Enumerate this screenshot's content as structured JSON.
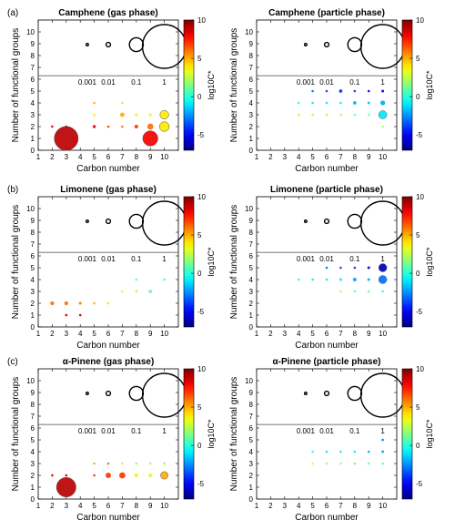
{
  "figure": {
    "colorbar": {
      "label": "log10C*",
      "ticks": [
        10,
        5,
        0,
        -5
      ],
      "range": [
        -7,
        10
      ]
    },
    "size_legend": {
      "values": [
        0.001,
        0.01,
        0.1,
        1
      ],
      "labels": [
        "0.001",
        "0.01",
        "0.1",
        "1"
      ],
      "x_positions": [
        4.5,
        6,
        8,
        10
      ]
    }
  },
  "chart_data": [
    {
      "type": "scatter",
      "panel_label": "(a)",
      "title": "Camphene (gas phase)",
      "xlabel": "Carbon number",
      "ylabel": "Number of functional groups",
      "xlim": [
        1,
        11
      ],
      "ylim": [
        0,
        11
      ],
      "xticks": [
        1,
        2,
        3,
        4,
        5,
        6,
        7,
        8,
        9,
        10
      ],
      "yticks": [
        0,
        1,
        2,
        3,
        4,
        5,
        6,
        7,
        8,
        9,
        10
      ],
      "points": [
        {
          "x": 2,
          "y": 2,
          "size": 0.003,
          "logC": 8
        },
        {
          "x": 3,
          "y": 2,
          "size": 0.001,
          "logC": 9
        },
        {
          "x": 3,
          "y": 1,
          "size": 0.3,
          "logC": 9
        },
        {
          "x": 5,
          "y": 4,
          "size": 0.001,
          "logC": 5
        },
        {
          "x": 5,
          "y": 3,
          "size": 0.001,
          "logC": 4
        },
        {
          "x": 5,
          "y": 2,
          "size": 0.005,
          "logC": 8
        },
        {
          "x": 6,
          "y": 2,
          "size": 0.002,
          "logC": 7
        },
        {
          "x": 7,
          "y": 4,
          "size": 0.001,
          "logC": 2
        },
        {
          "x": 7,
          "y": 3,
          "size": 0.01,
          "logC": 5
        },
        {
          "x": 7,
          "y": 2,
          "size": 0.002,
          "logC": 6
        },
        {
          "x": 8,
          "y": 3,
          "size": 0.005,
          "logC": 3
        },
        {
          "x": 8,
          "y": 2,
          "size": 0.007,
          "logC": 7
        },
        {
          "x": 9,
          "y": 3,
          "size": 0.005,
          "logC": 3
        },
        {
          "x": 9,
          "y": 2,
          "size": 0.02,
          "logC": 6
        },
        {
          "x": 9,
          "y": 1,
          "size": 0.12,
          "logC": 8
        },
        {
          "x": 10,
          "y": 3,
          "size": 0.04,
          "logC": 4
        },
        {
          "x": 10,
          "y": 2,
          "size": 0.05,
          "logC": 4
        }
      ]
    },
    {
      "type": "scatter",
      "panel_label": "",
      "title": "Camphene (particle phase)",
      "xlabel": "Carbon number",
      "ylabel": "Number of functional groups",
      "xlim": [
        1,
        11
      ],
      "ylim": [
        0,
        11
      ],
      "xticks": [
        1,
        2,
        3,
        4,
        5,
        6,
        7,
        8,
        9,
        10
      ],
      "yticks": [
        0,
        1,
        2,
        3,
        4,
        5,
        6,
        7,
        8,
        9,
        10
      ],
      "points": [
        {
          "x": 4,
          "y": 4,
          "size": 0.001,
          "logC": 0
        },
        {
          "x": 4,
          "y": 3,
          "size": 0.001,
          "logC": 4
        },
        {
          "x": 5,
          "y": 5,
          "size": 0.001,
          "logC": -3
        },
        {
          "x": 5,
          "y": 4,
          "size": 0.001,
          "logC": -1
        },
        {
          "x": 5,
          "y": 3,
          "size": 0.001,
          "logC": 2
        },
        {
          "x": 6,
          "y": 5,
          "size": 0.001,
          "logC": -4
        },
        {
          "x": 6,
          "y": 4,
          "size": 0.001,
          "logC": -1
        },
        {
          "x": 6,
          "y": 3,
          "size": 0.001,
          "logC": 2
        },
        {
          "x": 7,
          "y": 5,
          "size": 0.006,
          "logC": -4
        },
        {
          "x": 7,
          "y": 4,
          "size": 0.002,
          "logC": -1
        },
        {
          "x": 7,
          "y": 3,
          "size": 0.001,
          "logC": 2
        },
        {
          "x": 8,
          "y": 5,
          "size": 0.002,
          "logC": -4
        },
        {
          "x": 8,
          "y": 4,
          "size": 0.006,
          "logC": -2
        },
        {
          "x": 8,
          "y": 3,
          "size": 0.001,
          "logC": 1
        },
        {
          "x": 9,
          "y": 5,
          "size": 0.002,
          "logC": -5
        },
        {
          "x": 9,
          "y": 4,
          "size": 0.003,
          "logC": -2
        },
        {
          "x": 9,
          "y": 3,
          "size": 0.001,
          "logC": 1
        },
        {
          "x": 10,
          "y": 5,
          "size": 0.004,
          "logC": -5
        },
        {
          "x": 10,
          "y": 4,
          "size": 0.012,
          "logC": -2
        },
        {
          "x": 10,
          "y": 3,
          "size": 0.035,
          "logC": -1
        },
        {
          "x": 10,
          "y": 2,
          "size": 0.001,
          "logC": 2
        }
      ]
    },
    {
      "type": "scatter",
      "panel_label": "(b)",
      "title": "Limonene (gas phase)",
      "xlabel": "Carbon number",
      "ylabel": "Number of functional groups",
      "xlim": [
        1,
        11
      ],
      "ylim": [
        0,
        11
      ],
      "xticks": [
        1,
        2,
        3,
        4,
        5,
        6,
        7,
        8,
        9,
        10
      ],
      "yticks": [
        0,
        1,
        2,
        3,
        4,
        5,
        6,
        7,
        8,
        9,
        10
      ],
      "points": [
        {
          "x": 2,
          "y": 2,
          "size": 0.008,
          "logC": 6
        },
        {
          "x": 3,
          "y": 2,
          "size": 0.008,
          "logC": 6
        },
        {
          "x": 3,
          "y": 1,
          "size": 0.003,
          "logC": 9
        },
        {
          "x": 4,
          "y": 2,
          "size": 0.004,
          "logC": 6
        },
        {
          "x": 4,
          "y": 1,
          "size": 0.001,
          "logC": 9
        },
        {
          "x": 5,
          "y": 2,
          "size": 0.001,
          "logC": 5
        },
        {
          "x": 6,
          "y": 2,
          "size": 0.003,
          "logC": 4
        },
        {
          "x": 7,
          "y": 3,
          "size": 0.001,
          "logC": 3
        },
        {
          "x": 8,
          "y": 4,
          "size": 0.001,
          "logC": 1
        },
        {
          "x": 8,
          "y": 3,
          "size": 0.003,
          "logC": 2
        },
        {
          "x": 9,
          "y": 3,
          "size": 0.006,
          "logC": 1
        },
        {
          "x": 10,
          "y": 4,
          "size": 0.001,
          "logC": 0
        }
      ]
    },
    {
      "type": "scatter",
      "panel_label": "",
      "title": "Limonene (particle phase)",
      "xlabel": "Carbon number",
      "ylabel": "Number of functional groups",
      "xlim": [
        1,
        11
      ],
      "ylim": [
        0,
        11
      ],
      "xticks": [
        1,
        2,
        3,
        4,
        5,
        6,
        7,
        8,
        9,
        10
      ],
      "yticks": [
        0,
        1,
        2,
        3,
        4,
        5,
        6,
        7,
        8,
        9,
        10
      ],
      "points": [
        {
          "x": 4,
          "y": 4,
          "size": 0.001,
          "logC": 0
        },
        {
          "x": 5,
          "y": 4,
          "size": 0.001,
          "logC": -1
        },
        {
          "x": 6,
          "y": 5,
          "size": 0.001,
          "logC": -3
        },
        {
          "x": 6,
          "y": 4,
          "size": 0.001,
          "logC": -1
        },
        {
          "x": 7,
          "y": 5,
          "size": 0.001,
          "logC": -4
        },
        {
          "x": 7,
          "y": 4,
          "size": 0.004,
          "logC": -1
        },
        {
          "x": 7,
          "y": 3,
          "size": 0.001,
          "logC": 2
        },
        {
          "x": 8,
          "y": 5,
          "size": 0.001,
          "logC": -4
        },
        {
          "x": 8,
          "y": 4,
          "size": 0.007,
          "logC": -2
        },
        {
          "x": 8,
          "y": 3,
          "size": 0.001,
          "logC": 1
        },
        {
          "x": 9,
          "y": 5,
          "size": 0.004,
          "logC": -5
        },
        {
          "x": 9,
          "y": 4,
          "size": 0.004,
          "logC": -2
        },
        {
          "x": 9,
          "y": 3,
          "size": 0.001,
          "logC": 1
        },
        {
          "x": 10,
          "y": 5,
          "size": 0.035,
          "logC": -6
        },
        {
          "x": 10,
          "y": 4,
          "size": 0.035,
          "logC": -3
        },
        {
          "x": 10,
          "y": 3,
          "size": 0.001,
          "logC": 0
        }
      ]
    },
    {
      "type": "scatter",
      "panel_label": "(c)",
      "title": "α-Pinene (gas phase)",
      "xlabel": "Carbon number",
      "ylabel": "Number of functional groups",
      "xlim": [
        1,
        11
      ],
      "ylim": [
        0,
        11
      ],
      "xticks": [
        1,
        2,
        3,
        4,
        5,
        6,
        7,
        8,
        9,
        10
      ],
      "yticks": [
        0,
        1,
        2,
        3,
        4,
        5,
        6,
        7,
        8,
        9,
        10
      ],
      "points": [
        {
          "x": 2,
          "y": 2,
          "size": 0.003,
          "logC": 8
        },
        {
          "x": 3,
          "y": 2,
          "size": 0.001,
          "logC": 9
        },
        {
          "x": 3,
          "y": 1,
          "size": 0.2,
          "logC": 9
        },
        {
          "x": 5,
          "y": 3,
          "size": 0.001,
          "logC": 5
        },
        {
          "x": 5,
          "y": 2,
          "size": 0.001,
          "logC": 7
        },
        {
          "x": 6,
          "y": 3,
          "size": 0.002,
          "logC": 6
        },
        {
          "x": 6,
          "y": 2,
          "size": 0.015,
          "logC": 7
        },
        {
          "x": 7,
          "y": 3,
          "size": 0.002,
          "logC": 4
        },
        {
          "x": 7,
          "y": 2,
          "size": 0.02,
          "logC": 7
        },
        {
          "x": 8,
          "y": 3,
          "size": 0.002,
          "logC": 2
        },
        {
          "x": 8,
          "y": 2,
          "size": 0.006,
          "logC": 4
        },
        {
          "x": 9,
          "y": 3,
          "size": 0.002,
          "logC": 2
        },
        {
          "x": 9,
          "y": 2,
          "size": 0.008,
          "logC": 3
        },
        {
          "x": 10,
          "y": 3,
          "size": 0.003,
          "logC": 2
        },
        {
          "x": 10,
          "y": 2,
          "size": 0.03,
          "logC": 5
        }
      ]
    },
    {
      "type": "scatter",
      "panel_label": "",
      "title": "α-Pinene (particle phase)",
      "xlabel": "Carbon number",
      "ylabel": "Number of functional groups",
      "xlim": [
        1,
        11
      ],
      "ylim": [
        0,
        11
      ],
      "xticks": [
        1,
        2,
        3,
        4,
        5,
        6,
        7,
        8,
        9,
        10
      ],
      "yticks": [
        0,
        1,
        2,
        3,
        4,
        5,
        6,
        7,
        8,
        9,
        10
      ],
      "points": [
        {
          "x": 5,
          "y": 4,
          "size": 0.001,
          "logC": 0
        },
        {
          "x": 5,
          "y": 3,
          "size": 0.001,
          "logC": 3
        },
        {
          "x": 6,
          "y": 4,
          "size": 0.001,
          "logC": -1
        },
        {
          "x": 6,
          "y": 3,
          "size": 0.001,
          "logC": 2
        },
        {
          "x": 7,
          "y": 4,
          "size": 0.001,
          "logC": -1
        },
        {
          "x": 7,
          "y": 3,
          "size": 0.001,
          "logC": 2
        },
        {
          "x": 8,
          "y": 4,
          "size": 0.002,
          "logC": -1
        },
        {
          "x": 8,
          "y": 3,
          "size": 0.001,
          "logC": 1
        },
        {
          "x": 9,
          "y": 4,
          "size": 0.002,
          "logC": -2
        },
        {
          "x": 9,
          "y": 3,
          "size": 0.001,
          "logC": 1
        },
        {
          "x": 10,
          "y": 5,
          "size": 0.001,
          "logC": -3
        },
        {
          "x": 10,
          "y": 4,
          "size": 0.004,
          "logC": -2
        },
        {
          "x": 10,
          "y": 3,
          "size": 0.002,
          "logC": 1
        }
      ]
    }
  ]
}
